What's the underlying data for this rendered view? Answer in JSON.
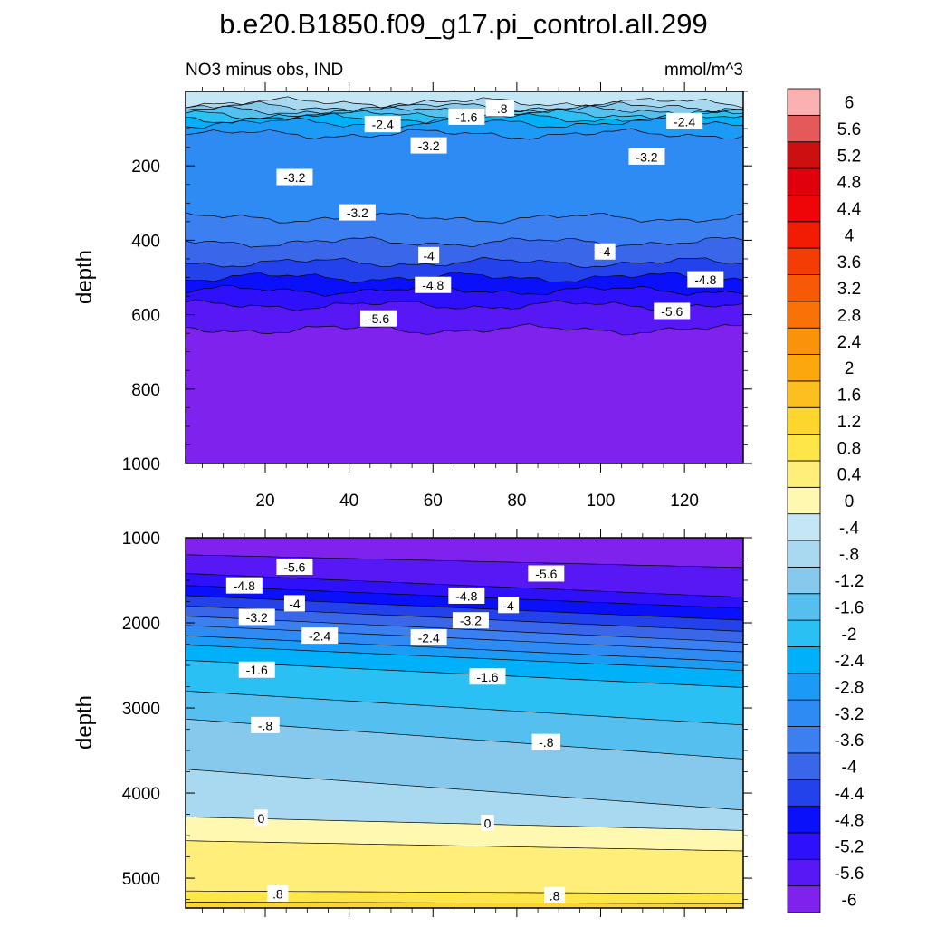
{
  "title": "b.e20.B1850.f09_g17.pi_control.all.299",
  "chart_data": {
    "type": "contour",
    "subtitle_left": "NO3 minus obs, IND",
    "subtitle_right": "mmol/m^3",
    "ylabel": "depth",
    "xlim": [
      1,
      134
    ],
    "x_ticks": [
      20,
      40,
      60,
      80,
      100,
      120
    ],
    "x_tick_labels": [
      "20",
      "40",
      "60",
      "80",
      "100",
      "120"
    ],
    "top_panel": {
      "ylim": [
        0,
        1000
      ],
      "y_ticks": [
        200,
        400,
        600,
        800,
        1000
      ],
      "y_tick_labels": [
        "200",
        "400",
        "600",
        "800",
        "1000"
      ],
      "bands": [
        {
          "level": -0.4,
          "y0": 0,
          "y1": 30
        },
        {
          "level": -0.8,
          "y0": 30,
          "y1": 42
        },
        {
          "level": -1.2,
          "y0": 42,
          "y1": 52
        },
        {
          "level": -1.6,
          "y0": 52,
          "y1": 62
        },
        {
          "level": -2.0,
          "y0": 62,
          "y1": 72
        },
        {
          "level": -2.4,
          "y0": 72,
          "y1": 85
        },
        {
          "level": -2.8,
          "y0": 85,
          "y1": 115
        },
        {
          "level": -3.2,
          "y0": 115,
          "y1": 340
        },
        {
          "level": -3.6,
          "y0": 340,
          "y1": 405
        },
        {
          "level": -4.0,
          "y0": 405,
          "y1": 460
        },
        {
          "level": -4.4,
          "y0": 460,
          "y1": 500
        },
        {
          "level": -4.8,
          "y0": 500,
          "y1": 535
        },
        {
          "level": -5.2,
          "y0": 535,
          "y1": 575
        },
        {
          "level": -5.6,
          "y0": 575,
          "y1": 640
        },
        {
          "level": -6.0,
          "y0": 640,
          "y1": 1000
        }
      ],
      "contour_labels": [
        {
          "text": "-.8",
          "x": 76,
          "y": 45
        },
        {
          "text": "-1.6",
          "x": 68,
          "y": 68
        },
        {
          "text": "-2.4",
          "x": 48,
          "y": 88
        },
        {
          "text": "-2.4",
          "x": 120,
          "y": 80
        },
        {
          "text": "-3.2",
          "x": 59,
          "y": 145
        },
        {
          "text": "-3.2",
          "x": 111,
          "y": 175
        },
        {
          "text": "-3.2",
          "x": 27,
          "y": 230
        },
        {
          "text": "-3.2",
          "x": 42,
          "y": 325
        },
        {
          "text": "-4",
          "x": 59,
          "y": 440
        },
        {
          "text": "-4",
          "x": 101,
          "y": 430
        },
        {
          "text": "-4.8",
          "x": 60,
          "y": 520
        },
        {
          "text": "-4.8",
          "x": 125,
          "y": 505
        },
        {
          "text": "-5.6",
          "x": 47,
          "y": 610
        },
        {
          "text": "-5.6",
          "x": 117,
          "y": 590
        }
      ]
    },
    "bottom_panel": {
      "ylim": [
        1000,
        5350
      ],
      "y_ticks": [
        1000,
        2000,
        3000,
        4000,
        5000
      ],
      "y_tick_labels": [
        "1000",
        "2000",
        "3000",
        "4000",
        "5000"
      ],
      "bands": [
        {
          "level": -6.0,
          "left": [
            1000,
            1200
          ],
          "right": [
            1000,
            1350
          ]
        },
        {
          "level": -5.6,
          "left": [
            1200,
            1420
          ],
          "right": [
            1350,
            1700
          ]
        },
        {
          "level": -5.2,
          "left": [
            1420,
            1560
          ],
          "right": [
            1700,
            1830
          ]
        },
        {
          "level": -4.8,
          "left": [
            1560,
            1680
          ],
          "right": [
            1830,
            1970
          ]
        },
        {
          "level": -4.4,
          "left": [
            1680,
            1800
          ],
          "right": [
            1970,
            2100
          ]
        },
        {
          "level": -4.0,
          "left": [
            1800,
            1920
          ],
          "right": [
            2100,
            2230
          ]
        },
        {
          "level": -3.6,
          "left": [
            1920,
            2030
          ],
          "right": [
            2230,
            2340
          ]
        },
        {
          "level": -3.2,
          "left": [
            2030,
            2150
          ],
          "right": [
            2340,
            2460
          ]
        },
        {
          "level": -2.8,
          "left": [
            2150,
            2260
          ],
          "right": [
            2460,
            2560
          ]
        },
        {
          "level": -2.4,
          "left": [
            2260,
            2440
          ],
          "right": [
            2560,
            2760
          ]
        },
        {
          "level": -2.0,
          "left": [
            2440,
            2800
          ],
          "right": [
            2760,
            3200
          ]
        },
        {
          "level": -1.6,
          "left": [
            2800,
            3130
          ],
          "right": [
            3200,
            3600
          ]
        },
        {
          "level": -1.2,
          "left": [
            3130,
            3720
          ],
          "right": [
            3600,
            4200
          ]
        },
        {
          "level": -0.8,
          "left": [
            3720,
            4280
          ],
          "right": [
            4200,
            4440
          ]
        },
        {
          "level": 0.0,
          "left": [
            4280,
            4560
          ],
          "right": [
            4440,
            4680
          ]
        },
        {
          "level": 0.4,
          "left": [
            4560,
            5150
          ],
          "right": [
            4680,
            5180
          ]
        },
        {
          "level": 0.8,
          "left": [
            5150,
            5280
          ],
          "right": [
            5180,
            5300
          ]
        },
        {
          "level": 1.2,
          "left": [
            5280,
            5350
          ],
          "right": [
            5300,
            5350
          ]
        }
      ],
      "contour_labels": [
        {
          "text": "-5.6",
          "x": 27,
          "y": 1340
        },
        {
          "text": "-5.6",
          "x": 87,
          "y": 1420
        },
        {
          "text": "-4.8",
          "x": 15,
          "y": 1560
        },
        {
          "text": "-4.8",
          "x": 68,
          "y": 1680
        },
        {
          "text": "-4",
          "x": 27,
          "y": 1770
        },
        {
          "text": "-4",
          "x": 78,
          "y": 1790
        },
        {
          "text": "-3.2",
          "x": 18,
          "y": 1930
        },
        {
          "text": "-3.2",
          "x": 69,
          "y": 1970
        },
        {
          "text": "-2.4",
          "x": 33,
          "y": 2150
        },
        {
          "text": "-2.4",
          "x": 59,
          "y": 2170
        },
        {
          "text": "-1.6",
          "x": 18,
          "y": 2550
        },
        {
          "text": "-1.6",
          "x": 73,
          "y": 2630
        },
        {
          "text": "-.8",
          "x": 20,
          "y": 3200
        },
        {
          "text": "-.8",
          "x": 87,
          "y": 3400
        },
        {
          "text": "0",
          "x": 19,
          "y": 4290
        },
        {
          "text": "0",
          "x": 73,
          "y": 4350
        },
        {
          "text": ".8",
          "x": 23,
          "y": 5180
        },
        {
          "text": ".8",
          "x": 89,
          "y": 5200
        }
      ]
    },
    "colorbar": {
      "boxes": [
        {
          "level": -6.0,
          "color": "#7f22ed"
        },
        {
          "level": -5.6,
          "color": "#5718f5"
        },
        {
          "level": -5.2,
          "color": "#2f10fa"
        },
        {
          "level": -4.8,
          "color": "#0b10fb"
        },
        {
          "level": -4.4,
          "color": "#2342ec"
        },
        {
          "level": -4.0,
          "color": "#3a67ea"
        },
        {
          "level": -3.6,
          "color": "#3c7ff0"
        },
        {
          "level": -3.2,
          "color": "#2e8bf4"
        },
        {
          "level": -2.8,
          "color": "#1b9af6"
        },
        {
          "level": -2.4,
          "color": "#00b0f8"
        },
        {
          "level": -2.0,
          "color": "#2ac0f3"
        },
        {
          "level": -1.6,
          "color": "#55c0ef"
        },
        {
          "level": -1.2,
          "color": "#86c9ec"
        },
        {
          "level": -0.8,
          "color": "#a8d9f0"
        },
        {
          "level": -0.4,
          "color": "#c5e6f4"
        },
        {
          "level": 0.0,
          "color": "#fff8b0"
        },
        {
          "level": 0.4,
          "color": "#ffee7a"
        },
        {
          "level": 0.8,
          "color": "#ffe648"
        },
        {
          "level": 1.2,
          "color": "#fdd52c"
        },
        {
          "level": 1.6,
          "color": "#fcbf1f"
        },
        {
          "level": 2.0,
          "color": "#fca70e"
        },
        {
          "level": 2.4,
          "color": "#fa920a"
        },
        {
          "level": 2.8,
          "color": "#f87208"
        },
        {
          "level": 3.2,
          "color": "#f65a06"
        },
        {
          "level": 3.6,
          "color": "#f43c05"
        },
        {
          "level": 4.0,
          "color": "#f21b04"
        },
        {
          "level": 4.4,
          "color": "#ef0408"
        },
        {
          "level": 4.8,
          "color": "#e0000c"
        },
        {
          "level": 5.2,
          "color": "#cc1010"
        },
        {
          "level": 5.6,
          "color": "#e45a5a"
        },
        {
          "level": 6.0,
          "color": "#fbb1b1"
        }
      ],
      "labels": [
        "-6",
        "-5.6",
        "-5.2",
        "-4.8",
        "-4.4",
        "-4",
        "-3.6",
        "-3.2",
        "-2.8",
        "-2.4",
        "-2",
        "-1.6",
        "-1.2",
        "-.8",
        "-.4",
        "0",
        "0.4",
        "0.8",
        "1.2",
        "1.6",
        "2",
        "2.4",
        "2.8",
        "3.2",
        "3.6",
        "4",
        "4.4",
        "4.8",
        "5.2",
        "5.6",
        "6"
      ]
    }
  }
}
